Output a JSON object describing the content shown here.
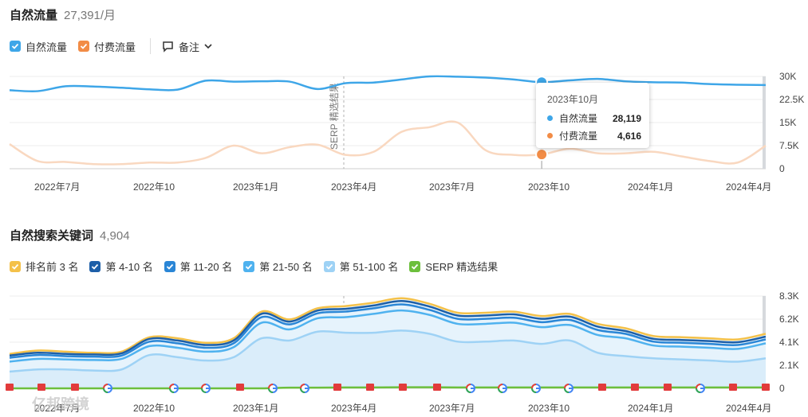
{
  "section1": {
    "title": "自然流量",
    "value": "27,391/月",
    "legend": [
      {
        "label": "自然流量",
        "color": "#3ea6e8"
      },
      {
        "label": "付费流量",
        "color": "#f28c46"
      }
    ],
    "notes_label": "备注"
  },
  "section2": {
    "title": "自然搜索关键词",
    "value": "4,904",
    "legend": [
      {
        "label": "排名前 3 名",
        "color": "#f4c149"
      },
      {
        "label": "第 4-10 名",
        "color": "#1d5fa8"
      },
      {
        "label": "第 11-20 名",
        "color": "#2a86d6"
      },
      {
        "label": "第 21-50 名",
        "color": "#4fb2ef"
      },
      {
        "label": "第 51-100 名",
        "color": "#9ed2f5"
      },
      {
        "label": "SERP 精选结果",
        "color": "#6cbf3c"
      }
    ]
  },
  "tooltip": {
    "title": "2023年10月",
    "rows": [
      {
        "label": "自然流量",
        "value": "28,119",
        "color": "#3ea6e8"
      },
      {
        "label": "付费流量",
        "value": "4,616",
        "color": "#f28c46"
      }
    ]
  },
  "watermark": "亿邦跨境",
  "chart_data": [
    {
      "type": "line",
      "x_tick_labels": [
        "2022年7月",
        "2022年10",
        "2023年1月",
        "2023年4月",
        "2023年7月",
        "2023年10",
        "2024年1月",
        "2024年4月"
      ],
      "y_tick_labels": [
        "30K",
        "22.5K",
        "15K",
        "7.5K",
        "0"
      ],
      "ylim": [
        0,
        30000
      ],
      "annotation": "SERP 精选结果",
      "series": [
        {
          "name": "自然流量",
          "color": "#3ea6e8",
          "values": [
            25500,
            25200,
            26800,
            26700,
            26300,
            25800,
            25700,
            28600,
            28300,
            28400,
            28300,
            25900,
            27800,
            28000,
            29000,
            30000,
            29900,
            29600,
            29000,
            28119,
            28700,
            29200,
            28400,
            28100,
            28000,
            27500,
            27300,
            27200
          ]
        },
        {
          "name": "付费流量",
          "color": "#f28c46",
          "values": [
            8000,
            2500,
            2200,
            1500,
            1500,
            2000,
            2000,
            3500,
            7500,
            5000,
            7000,
            7800,
            4500,
            5500,
            12000,
            13500,
            15000,
            6000,
            4500,
            4616,
            6500,
            5000,
            5000,
            5500,
            4000,
            2500,
            2000,
            7500
          ]
        }
      ]
    },
    {
      "type": "area",
      "x_tick_labels": [
        "2022年7月",
        "2022年10",
        "2023年1月",
        "2023年4月",
        "2023年7月",
        "2023年10",
        "2024年1月",
        "2024年4月"
      ],
      "y_tick_labels": [
        "8.3K",
        "6.2K",
        "4.1K",
        "2.1K",
        "0"
      ],
      "ylim": [
        0,
        8300
      ],
      "series": [
        {
          "name": "排名前 3 名",
          "color": "#f4c149",
          "values": [
            3100,
            3400,
            3300,
            3200,
            3300,
            4600,
            4500,
            4100,
            4500,
            6900,
            6200,
            7200,
            7400,
            7700,
            8100,
            7600,
            6800,
            6800,
            6900,
            6500,
            6700,
            5800,
            5400,
            4700,
            4600,
            4500,
            4400,
            4900
          ]
        },
        {
          "name": "第 4-10 名",
          "color": "#1d5fa8",
          "values": [
            2950,
            3200,
            3100,
            3050,
            3150,
            4450,
            4300,
            3900,
            4300,
            6700,
            6000,
            7000,
            7150,
            7450,
            7850,
            7350,
            6550,
            6550,
            6650,
            6250,
            6450,
            5550,
            5150,
            4450,
            4350,
            4250,
            4150,
            4650
          ]
        },
        {
          "name": "第 11-20 名",
          "color": "#2a86d6",
          "values": [
            2750,
            3000,
            2900,
            2850,
            2950,
            4200,
            4050,
            3650,
            4050,
            6400,
            5750,
            6750,
            6900,
            7200,
            7550,
            7050,
            6250,
            6250,
            6350,
            5950,
            6150,
            5250,
            4900,
            4200,
            4100,
            4000,
            3900,
            4400
          ]
        },
        {
          "name": "第 21-50 名",
          "color": "#4fb2ef",
          "values": [
            2400,
            2650,
            2600,
            2550,
            2650,
            3800,
            3650,
            3300,
            3700,
            5900,
            5300,
            6300,
            6400,
            6700,
            7000,
            6600,
            5800,
            5800,
            5900,
            5500,
            5700,
            4800,
            4500,
            3850,
            3750,
            3650,
            3550,
            4050
          ]
        },
        {
          "name": "第 51-100 名",
          "color": "#9ed2f5",
          "values": [
            1500,
            1700,
            1700,
            1600,
            1700,
            3000,
            2800,
            2500,
            2800,
            4500,
            4300,
            5100,
            5000,
            5000,
            5200,
            4900,
            4200,
            4200,
            4300,
            4000,
            4300,
            3200,
            2900,
            2700,
            2600,
            2500,
            2400,
            2700
          ]
        },
        {
          "name": "SERP 精选结果",
          "color": "#6cbf3c",
          "values": [
            0,
            0,
            0,
            0,
            0,
            0,
            0,
            0,
            0,
            0,
            60,
            60,
            80,
            80,
            100,
            100,
            80,
            80,
            80,
            80,
            80,
            80,
            80,
            80,
            80,
            80,
            80,
            80
          ]
        }
      ]
    }
  ]
}
